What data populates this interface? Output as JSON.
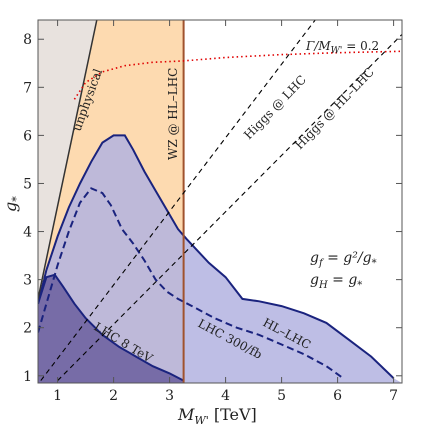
{
  "chart_data": {
    "type": "area",
    "xlim": [
      0.65,
      7.15
    ],
    "ylim": [
      0.85,
      8.4
    ],
    "x_ticks": [
      1,
      2,
      3,
      4,
      5,
      6,
      7
    ],
    "y_ticks": [
      1,
      2,
      3,
      4,
      5,
      6,
      7,
      8
    ],
    "xlabel": "M_W' [TeV]",
    "xlabel_main": "M",
    "xlabel_sub": "W'",
    "xlabel_unit": " [TeV]",
    "ylabel_main": "g",
    "ylabel_sub": "*",
    "regions": [
      {
        "label": "unphysical",
        "fill": "#e8e2de",
        "edge": "#333333",
        "boundary": [
          [
            0.65,
            2.6
          ],
          [
            1.7,
            8.4
          ]
        ]
      },
      {
        "label": "WZ @ HL–LHC",
        "fill": "#fddab0",
        "edge": "#a0522d",
        "x_max": 3.25
      },
      {
        "label": "HL–LHC",
        "fill": "#b3b3e0",
        "edge": "#1a237e",
        "curve": [
          [
            0.65,
            2.5
          ],
          [
            0.8,
            3.2
          ],
          [
            1.0,
            3.9
          ],
          [
            1.2,
            4.5
          ],
          [
            1.4,
            5.0
          ],
          [
            1.6,
            5.45
          ],
          [
            1.8,
            5.85
          ],
          [
            2.0,
            6.0
          ],
          [
            2.2,
            6.0
          ],
          [
            2.35,
            5.7
          ],
          [
            2.55,
            5.25
          ],
          [
            2.75,
            4.85
          ],
          [
            2.95,
            4.45
          ],
          [
            3.15,
            4.05
          ],
          [
            3.3,
            3.85
          ],
          [
            3.5,
            3.6
          ],
          [
            3.7,
            3.35
          ],
          [
            4.0,
            3.05
          ],
          [
            4.3,
            2.6
          ],
          [
            4.6,
            2.55
          ],
          [
            5.0,
            2.45
          ],
          [
            5.4,
            2.3
          ],
          [
            5.8,
            2.1
          ],
          [
            6.2,
            1.75
          ],
          [
            6.6,
            1.4
          ],
          [
            7.0,
            0.95
          ]
        ]
      },
      {
        "label": "LHC 300/fb",
        "fill": "none",
        "edge": "#1a237e",
        "curve": [
          [
            0.65,
            1.9
          ],
          [
            0.8,
            2.5
          ],
          [
            1.0,
            3.3
          ],
          [
            1.2,
            4.0
          ],
          [
            1.4,
            4.6
          ],
          [
            1.6,
            4.9
          ],
          [
            1.8,
            4.8
          ],
          [
            1.95,
            4.55
          ],
          [
            2.15,
            4.05
          ],
          [
            2.35,
            3.75
          ],
          [
            2.55,
            3.4
          ],
          [
            2.75,
            3.0
          ],
          [
            2.95,
            2.75
          ],
          [
            3.15,
            2.6
          ],
          [
            3.4,
            2.45
          ],
          [
            3.8,
            2.2
          ],
          [
            4.2,
            2.0
          ],
          [
            4.6,
            1.85
          ],
          [
            5.0,
            1.65
          ],
          [
            5.4,
            1.45
          ],
          [
            5.8,
            1.2
          ],
          [
            6.1,
            0.95
          ]
        ]
      },
      {
        "label": "LHC 8 TeV",
        "fill": "#6b5e9e",
        "edge": "#1a237e",
        "curve": [
          [
            0.65,
            2.5
          ],
          [
            0.8,
            3.05
          ],
          [
            0.95,
            3.1
          ],
          [
            1.1,
            2.85
          ],
          [
            1.3,
            2.5
          ],
          [
            1.5,
            2.2
          ],
          [
            1.8,
            1.85
          ],
          [
            2.1,
            1.6
          ],
          [
            2.4,
            1.4
          ],
          [
            2.7,
            1.2
          ],
          [
            3.0,
            1.05
          ],
          [
            3.25,
            0.9
          ]
        ]
      }
    ],
    "lines": [
      {
        "label": "Higgs @ LHC",
        "style": "dashed",
        "color": "#000000",
        "points": [
          [
            0.7,
            0.9
          ],
          [
            5.6,
            8.4
          ]
        ]
      },
      {
        "label": "Higgs @ HL–LHC",
        "style": "dashed",
        "color": "#000000",
        "points": [
          [
            1.0,
            0.9
          ],
          [
            7.15,
            8.1
          ]
        ]
      },
      {
        "label": "Γ/M_W' = 0.2",
        "style": "dotted",
        "color": "#e00000",
        "points": [
          [
            1.3,
            6.75
          ],
          [
            1.5,
            7.1
          ],
          [
            1.8,
            7.32
          ],
          [
            2.2,
            7.45
          ],
          [
            2.7,
            7.52
          ],
          [
            3.25,
            7.55
          ],
          [
            4.0,
            7.62
          ],
          [
            5.0,
            7.68
          ],
          [
            6.0,
            7.72
          ],
          [
            7.15,
            7.75
          ]
        ]
      }
    ],
    "annotations": {
      "gamma_label_main": "Γ/M",
      "gamma_label_sub": "W'",
      "gamma_label_rest": " = 0.2",
      "formula1_lhs": "g",
      "formula1_lhs_sub": "f",
      "formula1_rhs": " = g²/g",
      "formula1_rhs_sub": "*",
      "formula2_lhs": "g",
      "formula2_lhs_sub": "H",
      "formula2_rhs": " = g",
      "formula2_rhs_sub": "*"
    },
    "colors": {
      "unphysical": "#e8e2de",
      "wz": "#fddab0",
      "hl_lhc": "#b3b3e0",
      "lhc8": "#6b5e9e",
      "blue_edge": "#1a237e",
      "brown_edge": "#a0522d",
      "gamma": "#e00000"
    }
  }
}
